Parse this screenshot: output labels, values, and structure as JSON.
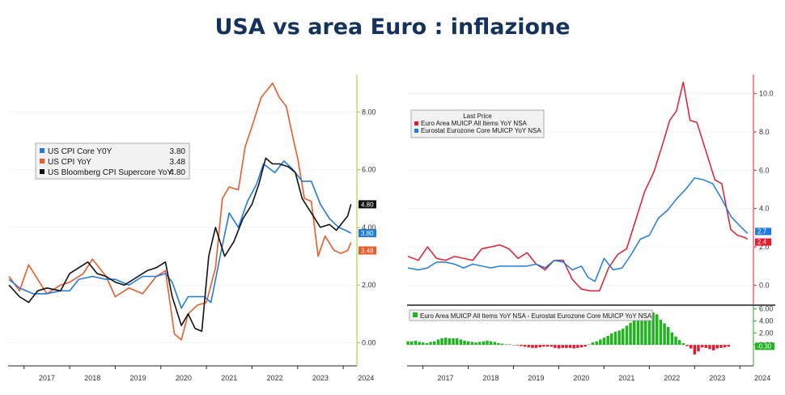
{
  "title": "USA vs area Euro : inflazione",
  "colors": {
    "blue": "#1e7be6",
    "orange": "#f05a28",
    "black": "#111111",
    "red": "#e8192c",
    "green": "#1fb51f",
    "axis": "#9acd32",
    "redaxis": "#e8192c"
  },
  "chart_data": [
    {
      "type": "line",
      "name": "us-inflation",
      "xlabels": [
        "2017",
        "2018",
        "2019",
        "2020",
        "2021",
        "2022",
        "2023",
        "2024"
      ],
      "yticks": [
        "8.00",
        "6.00",
        "4.00",
        "2.00",
        "0.00"
      ],
      "ylim": [
        -0.8,
        9.3
      ],
      "xlim": [
        2016.65,
        2024.3
      ],
      "legend_position": "middle-left",
      "series": [
        {
          "key": "core",
          "name": "US CPI Core Y0Y",
          "last": "3.80",
          "color": "#1e7be6",
          "x": [
            2016.67,
            2016.9,
            2017.2,
            2017.5,
            2017.8,
            2018.0,
            2018.2,
            2018.5,
            2018.8,
            2019.0,
            2019.3,
            2019.6,
            2019.9,
            2020.1,
            2020.25,
            2020.45,
            2020.6,
            2020.8,
            2020.95,
            2021.1,
            2021.3,
            2021.5,
            2021.7,
            2021.9,
            2022.1,
            2022.25,
            2022.5,
            2022.7,
            2022.9,
            2023.1,
            2023.3,
            2023.5,
            2023.7,
            2023.9,
            2024.05,
            2024.17
          ],
          "y": [
            2.2,
            1.9,
            1.7,
            1.7,
            1.8,
            1.8,
            2.2,
            2.3,
            2.2,
            2.2,
            2.0,
            2.3,
            2.3,
            2.4,
            2.1,
            1.2,
            1.6,
            1.6,
            1.6,
            1.4,
            3.0,
            4.5,
            4.0,
            4.9,
            5.5,
            6.2,
            5.9,
            6.3,
            6.0,
            5.6,
            5.6,
            4.8,
            4.3,
            4.0,
            3.9,
            3.8
          ]
        },
        {
          "key": "cpi",
          "name": "US CPI YoY",
          "last": "3.48",
          "color": "#f05a28",
          "x": [
            2016.67,
            2016.9,
            2017.1,
            2017.3,
            2017.5,
            2017.8,
            2018.0,
            2018.3,
            2018.5,
            2018.8,
            2019.0,
            2019.3,
            2019.6,
            2019.9,
            2020.1,
            2020.3,
            2020.45,
            2020.6,
            2020.8,
            2021.0,
            2021.2,
            2021.35,
            2021.5,
            2021.7,
            2021.85,
            2022.0,
            2022.2,
            2022.45,
            2022.6,
            2022.75,
            2022.9,
            2023.0,
            2023.15,
            2023.3,
            2023.45,
            2023.6,
            2023.8,
            2023.95,
            2024.1,
            2024.17
          ],
          "y": [
            2.3,
            1.8,
            2.7,
            2.2,
            1.7,
            2.0,
            2.1,
            2.4,
            2.9,
            2.3,
            1.6,
            1.9,
            1.7,
            2.3,
            2.5,
            0.3,
            0.1,
            1.0,
            1.3,
            1.4,
            2.6,
            5.0,
            5.4,
            5.3,
            6.8,
            7.5,
            8.5,
            9.0,
            8.5,
            8.2,
            7.1,
            6.4,
            5.0,
            4.9,
            3.0,
            3.7,
            3.2,
            3.1,
            3.2,
            3.48
          ]
        },
        {
          "key": "super",
          "name": "US Bloomberg CPI Supercore YoY",
          "last": "4.80",
          "color": "#111111",
          "x": [
            2016.67,
            2016.9,
            2017.1,
            2017.3,
            2017.5,
            2017.8,
            2018.0,
            2018.2,
            2018.4,
            2018.6,
            2018.8,
            2019.0,
            2019.2,
            2019.5,
            2019.7,
            2019.9,
            2020.1,
            2020.25,
            2020.45,
            2020.6,
            2020.75,
            2020.9,
            2021.05,
            2021.2,
            2021.4,
            2021.6,
            2021.8,
            2022.0,
            2022.15,
            2022.3,
            2022.45,
            2022.6,
            2022.8,
            2022.95,
            2023.1,
            2023.3,
            2023.5,
            2023.7,
            2023.85,
            2024.0,
            2024.1,
            2024.17
          ],
          "y": [
            2.0,
            1.6,
            1.4,
            1.8,
            1.9,
            1.8,
            2.4,
            2.6,
            2.8,
            2.4,
            2.3,
            2.1,
            2.0,
            2.3,
            2.5,
            2.6,
            2.8,
            1.6,
            0.6,
            1.0,
            0.5,
            0.4,
            3.0,
            4.0,
            3.0,
            3.5,
            4.3,
            4.8,
            5.5,
            6.4,
            6.2,
            6.2,
            6.1,
            5.9,
            5.0,
            4.5,
            4.0,
            4.1,
            3.9,
            4.2,
            4.4,
            4.8
          ]
        }
      ]
    },
    {
      "type": "line",
      "name": "euro-inflation",
      "legend_title": "Last Price",
      "legend_position": "top-left",
      "xlabels": [
        "2017",
        "2018",
        "2019",
        "2020",
        "2021",
        "2022",
        "2023",
        "2024"
      ],
      "yticks": [
        "10.0",
        "8.0",
        "6.0",
        "4.0",
        "2.0",
        "0.0"
      ],
      "ylim": [
        -1.0,
        11.0
      ],
      "xlim": [
        2016.65,
        2024.3
      ],
      "series": [
        {
          "key": "hicp",
          "name": "Euro Area MUICP All Items YoY NSA",
          "last": "2.4",
          "color": "#e8192c",
          "x": [
            2016.67,
            2016.9,
            2017.1,
            2017.3,
            2017.5,
            2017.7,
            2017.9,
            2018.1,
            2018.3,
            2018.5,
            2018.7,
            2018.9,
            2019.1,
            2019.3,
            2019.5,
            2019.7,
            2019.9,
            2020.1,
            2020.3,
            2020.5,
            2020.7,
            2020.9,
            2021.1,
            2021.3,
            2021.5,
            2021.7,
            2021.9,
            2022.1,
            2022.3,
            2022.45,
            2022.6,
            2022.75,
            2022.9,
            2023.05,
            2023.25,
            2023.45,
            2023.6,
            2023.8,
            2023.95,
            2024.1,
            2024.17
          ],
          "y": [
            1.5,
            1.3,
            2.0,
            1.4,
            1.3,
            1.5,
            1.4,
            1.3,
            1.9,
            2.0,
            2.1,
            1.9,
            1.4,
            1.7,
            1.1,
            0.8,
            1.3,
            1.3,
            0.3,
            -0.2,
            -0.3,
            -0.3,
            0.9,
            1.6,
            1.9,
            3.4,
            4.9,
            5.9,
            7.4,
            8.6,
            9.1,
            10.6,
            8.6,
            8.5,
            7.0,
            5.5,
            5.3,
            2.9,
            2.6,
            2.5,
            2.4
          ]
        },
        {
          "key": "core",
          "name": "Eurostat Eurozone Core MUICP YoY NSA",
          "last": "2.7",
          "color": "#1e7be6",
          "x": [
            2016.67,
            2016.9,
            2017.1,
            2017.3,
            2017.5,
            2017.7,
            2017.9,
            2018.1,
            2018.3,
            2018.5,
            2018.7,
            2018.9,
            2019.1,
            2019.3,
            2019.5,
            2019.7,
            2019.9,
            2020.1,
            2020.3,
            2020.5,
            2020.65,
            2020.8,
            2021.0,
            2021.2,
            2021.4,
            2021.6,
            2021.8,
            2022.0,
            2022.2,
            2022.4,
            2022.6,
            2022.8,
            2023.0,
            2023.2,
            2023.4,
            2023.6,
            2023.8,
            2024.0,
            2024.17
          ],
          "y": [
            0.9,
            0.8,
            0.9,
            1.2,
            1.2,
            1.1,
            0.9,
            1.1,
            1.0,
            0.9,
            1.0,
            1.0,
            1.0,
            1.0,
            1.1,
            0.9,
            1.3,
            1.2,
            0.8,
            1.0,
            0.4,
            0.2,
            1.4,
            0.8,
            0.9,
            1.6,
            2.4,
            2.6,
            3.5,
            3.9,
            4.5,
            5.0,
            5.6,
            5.5,
            5.3,
            4.5,
            3.6,
            3.1,
            2.7
          ]
        }
      ]
    },
    {
      "type": "bar",
      "name": "euro-spread",
      "label": "Euro Area MUICP All Items YoY NSA - Eurostat Eurozone Core MUICP YoY NSA",
      "last": "-0.30",
      "yticks": [
        "6.00",
        "4.00",
        "2.00",
        "0.00"
      ],
      "ylim": [
        -3.5,
        6.5
      ],
      "xlim": [
        2016.65,
        2024.3
      ],
      "x_start": 2016.67,
      "x_step": 0.0833,
      "values": [
        0.6,
        0.6,
        0.7,
        0.5,
        0.4,
        0.3,
        0.5,
        0.6,
        0.9,
        1.1,
        1.2,
        1.1,
        1.1,
        1.1,
        0.9,
        0.7,
        0.6,
        0.5,
        0.4,
        0.5,
        0.6,
        0.7,
        0.6,
        0.5,
        0.3,
        0.2,
        0.1,
        0.1,
        0,
        -0.1,
        -0.2,
        -0.3,
        -0.4,
        -0.5,
        -0.5,
        -0.4,
        -0.3,
        -0.3,
        -0.3,
        -0.5,
        -0.6,
        -0.5,
        -0.5,
        -0.5,
        -0.6,
        -0.5,
        -0.4,
        -0.3,
        0.1,
        0.4,
        0.6,
        0.9,
        1.2,
        1.5,
        1.9,
        2.2,
        2.4,
        2.7,
        3.2,
        3.7,
        4.2,
        4.3,
        4.4,
        4.6,
        4.9,
        5.4,
        5.1,
        4.2,
        3.6,
        3.0,
        2.1,
        1.4,
        0.8,
        0.3,
        -0.2,
        -0.6,
        -1.6,
        -1.1,
        -0.4,
        -0.5,
        -0.7,
        -0.9,
        -0.6,
        -0.5,
        -0.4,
        -0.3
      ]
    }
  ]
}
